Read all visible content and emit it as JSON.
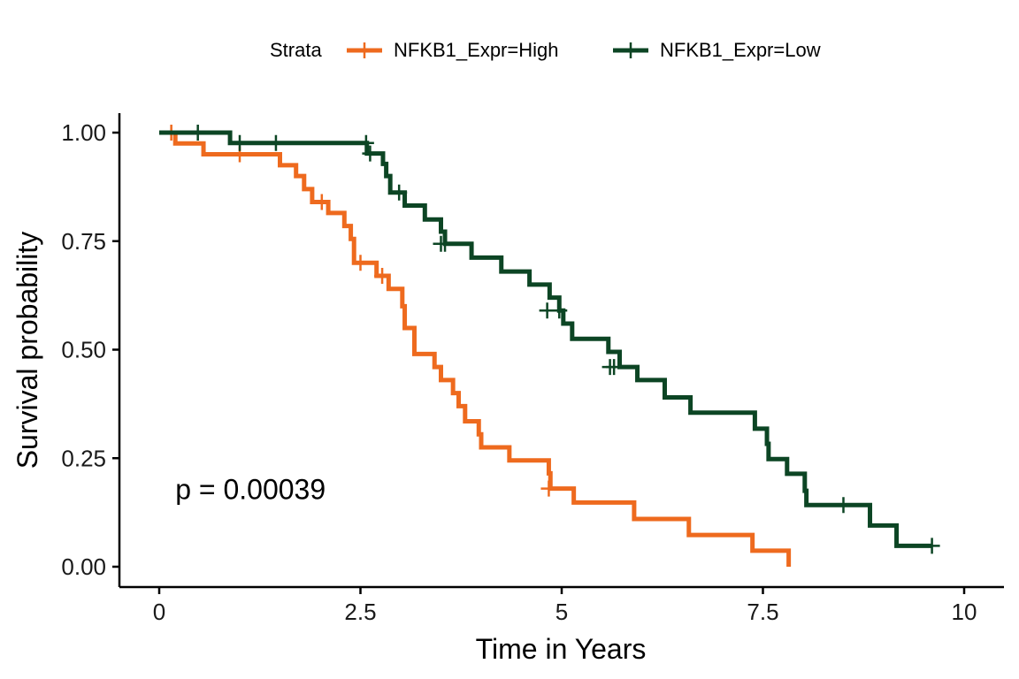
{
  "chart_data": {
    "type": "line",
    "subtype": "kaplan-meier step",
    "xlabel": "Time in Years",
    "ylabel": "Survival probability",
    "xlim": [
      0,
      10
    ],
    "ylim": [
      0,
      1
    ],
    "x_ticks": [
      0,
      2.5,
      5,
      7.5,
      10
    ],
    "x_tick_labels": [
      "0",
      "2.5",
      "5",
      "7.5",
      "10"
    ],
    "y_ticks": [
      0,
      0.25,
      0.5,
      0.75,
      1
    ],
    "y_tick_labels": [
      "0.00",
      "0.25",
      "0.50",
      "0.75",
      "1.00"
    ],
    "grid": false,
    "legend": {
      "placement": "top",
      "title": "Strata"
    },
    "annotation": {
      "text": "p = 0.00039",
      "x": 0.2,
      "y": 0.18
    },
    "series": [
      {
        "name": "NFKB1_Expr=High",
        "color": "#ee6a1e",
        "steps": [
          [
            0,
            1.0
          ],
          [
            0.2,
            0.975
          ],
          [
            0.55,
            0.95
          ],
          [
            1.5,
            0.925
          ],
          [
            1.7,
            0.9
          ],
          [
            1.8,
            0.87
          ],
          [
            1.9,
            0.84
          ],
          [
            2.1,
            0.815
          ],
          [
            2.3,
            0.785
          ],
          [
            2.38,
            0.755
          ],
          [
            2.42,
            0.7
          ],
          [
            2.7,
            0.67
          ],
          [
            2.85,
            0.64
          ],
          [
            3.02,
            0.6
          ],
          [
            3.05,
            0.55
          ],
          [
            3.17,
            0.49
          ],
          [
            3.42,
            0.46
          ],
          [
            3.5,
            0.43
          ],
          [
            3.65,
            0.4
          ],
          [
            3.72,
            0.37
          ],
          [
            3.8,
            0.335
          ],
          [
            3.97,
            0.305
          ],
          [
            4.0,
            0.275
          ],
          [
            4.35,
            0.245
          ],
          [
            4.84,
            0.215
          ],
          [
            4.86,
            0.18
          ],
          [
            5.15,
            0.148
          ],
          [
            5.9,
            0.11
          ],
          [
            6.58,
            0.073
          ],
          [
            7.37,
            0.037
          ],
          [
            7.82,
            0.0
          ],
          [
            7.82,
            0.0
          ]
        ],
        "censored": [
          [
            0.15,
            1.0
          ],
          [
            1.0,
            0.95
          ],
          [
            2.02,
            0.84
          ],
          [
            2.5,
            0.7
          ],
          [
            2.77,
            0.67
          ],
          [
            4.84,
            0.18
          ]
        ]
      },
      {
        "name": "NFKB1_Expr=Low",
        "color": "#0c4524",
        "steps": [
          [
            0,
            1.0
          ],
          [
            0.88,
            0.976
          ],
          [
            2.58,
            0.952
          ],
          [
            2.78,
            0.928
          ],
          [
            2.82,
            0.9
          ],
          [
            2.87,
            0.862
          ],
          [
            3.05,
            0.832
          ],
          [
            3.3,
            0.8
          ],
          [
            3.5,
            0.772
          ],
          [
            3.55,
            0.744
          ],
          [
            3.88,
            0.712
          ],
          [
            4.25,
            0.68
          ],
          [
            4.6,
            0.65
          ],
          [
            4.85,
            0.62
          ],
          [
            4.97,
            0.59
          ],
          [
            5.02,
            0.56
          ],
          [
            5.13,
            0.525
          ],
          [
            5.58,
            0.495
          ],
          [
            5.72,
            0.46
          ],
          [
            5.94,
            0.43
          ],
          [
            6.28,
            0.39
          ],
          [
            6.6,
            0.355
          ],
          [
            7.4,
            0.318
          ],
          [
            7.55,
            0.283
          ],
          [
            7.57,
            0.248
          ],
          [
            7.8,
            0.214
          ],
          [
            8.02,
            0.175
          ],
          [
            8.04,
            0.142
          ],
          [
            8.83,
            0.095
          ],
          [
            9.16,
            0.048
          ],
          [
            9.6,
            0.048
          ]
        ],
        "censored": [
          [
            0.48,
            1.0
          ],
          [
            1.0,
            0.976
          ],
          [
            1.45,
            0.976
          ],
          [
            2.57,
            0.976
          ],
          [
            2.62,
            0.952
          ],
          [
            2.98,
            0.862
          ],
          [
            3.5,
            0.744
          ],
          [
            3.55,
            0.744
          ],
          [
            4.82,
            0.59
          ],
          [
            4.97,
            0.59
          ],
          [
            5.6,
            0.46
          ],
          [
            5.65,
            0.46
          ],
          [
            8.5,
            0.142
          ],
          [
            9.6,
            0.048
          ]
        ]
      }
    ]
  }
}
